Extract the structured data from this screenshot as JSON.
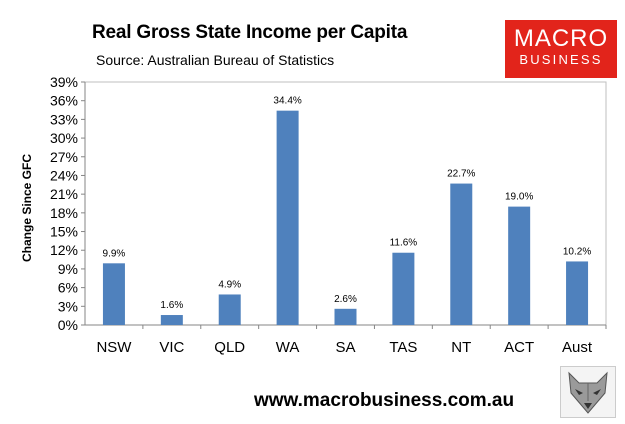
{
  "header": {
    "title": "Real Gross State Income per Capita",
    "subtitle": "Source: Australian Bureau of Statistics"
  },
  "logo": {
    "line1": "MACRO",
    "line2": "BUSINESS",
    "bg_color": "#e2241b"
  },
  "footer": {
    "url": "www.macrobusiness.com.au"
  },
  "wolf_logo": {
    "icon": "wolf-head-icon"
  },
  "chart_data": {
    "type": "bar",
    "title": "Real Gross State Income per Capita",
    "subtitle": "Source: Australian Bureau of Statistics",
    "ylabel": "Change Since GFC",
    "xlabel": "",
    "categories": [
      "NSW",
      "VIC",
      "QLD",
      "WA",
      "SA",
      "TAS",
      "NT",
      "ACT",
      "Aust"
    ],
    "values": [
      9.9,
      1.6,
      4.9,
      34.4,
      2.6,
      11.6,
      22.7,
      19.0,
      10.2
    ],
    "data_labels": [
      "9.9%",
      "1.6%",
      "4.9%",
      "34.4%",
      "2.6%",
      "11.6%",
      "22.7%",
      "19.0%",
      "10.2%"
    ],
    "ylim": [
      0,
      39
    ],
    "yticks": [
      0,
      3,
      6,
      9,
      12,
      15,
      18,
      21,
      24,
      27,
      30,
      33,
      36,
      39
    ],
    "ytick_labels": [
      "0%",
      "3%",
      "6%",
      "9%",
      "12%",
      "15%",
      "18%",
      "21%",
      "24%",
      "27%",
      "30%",
      "33%",
      "36%",
      "39%"
    ],
    "grid": false,
    "legend": "none",
    "bar_color": "#4f81bd"
  }
}
